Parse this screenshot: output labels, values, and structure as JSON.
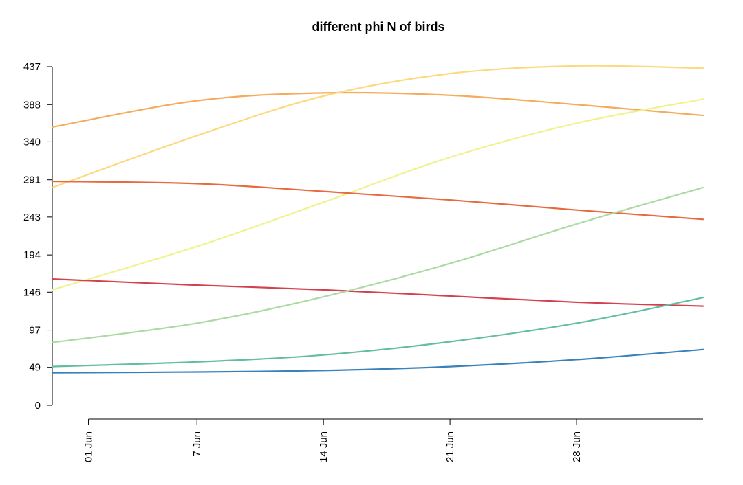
{
  "chart_data": {
    "type": "line",
    "title": "different phi N of birds",
    "xlabel": "",
    "ylabel": "",
    "grid": false,
    "legend": "none",
    "x_start": "2024-05-30",
    "x_end": "2024-07-05",
    "x_ticks": [
      {
        "date": "2024-06-01",
        "label": "01 Jun"
      },
      {
        "date": "2024-06-07",
        "label": "7 Jun"
      },
      {
        "date": "2024-06-14",
        "label": "14 Jun"
      },
      {
        "date": "2024-06-21",
        "label": "21 Jun"
      },
      {
        "date": "2024-06-28",
        "label": "28 Jun"
      }
    ],
    "y_ticks": [
      0,
      49,
      97,
      146,
      194,
      243,
      291,
      340,
      388,
      437
    ],
    "ylim": [
      0,
      437
    ],
    "x": [
      "2024-05-30",
      "2024-06-07",
      "2024-06-14",
      "2024-06-21",
      "2024-06-28",
      "2024-07-05"
    ],
    "series": [
      {
        "color": "#f5ab5b",
        "values": [
          359,
          393,
          403,
          400,
          388,
          374
        ]
      },
      {
        "color": "#fdd97e",
        "values": [
          281,
          348,
          399,
          428,
          438,
          435
        ]
      },
      {
        "color": "#f0f28e",
        "values": [
          149,
          205,
          262,
          320,
          364,
          395
        ]
      },
      {
        "color": "#e76a3f",
        "values": [
          289,
          286,
          276,
          265,
          252,
          240
        ]
      },
      {
        "color": "#d3414f",
        "values": [
          163,
          155,
          149,
          141,
          133,
          128
        ]
      },
      {
        "color": "#abdaa2",
        "values": [
          81,
          106,
          140,
          183,
          234,
          281
        ]
      },
      {
        "color": "#63bda3",
        "values": [
          50,
          56,
          65,
          82,
          106,
          139
        ]
      },
      {
        "color": "#3981ba",
        "values": [
          42,
          43,
          45,
          50,
          59,
          72
        ]
      }
    ]
  }
}
